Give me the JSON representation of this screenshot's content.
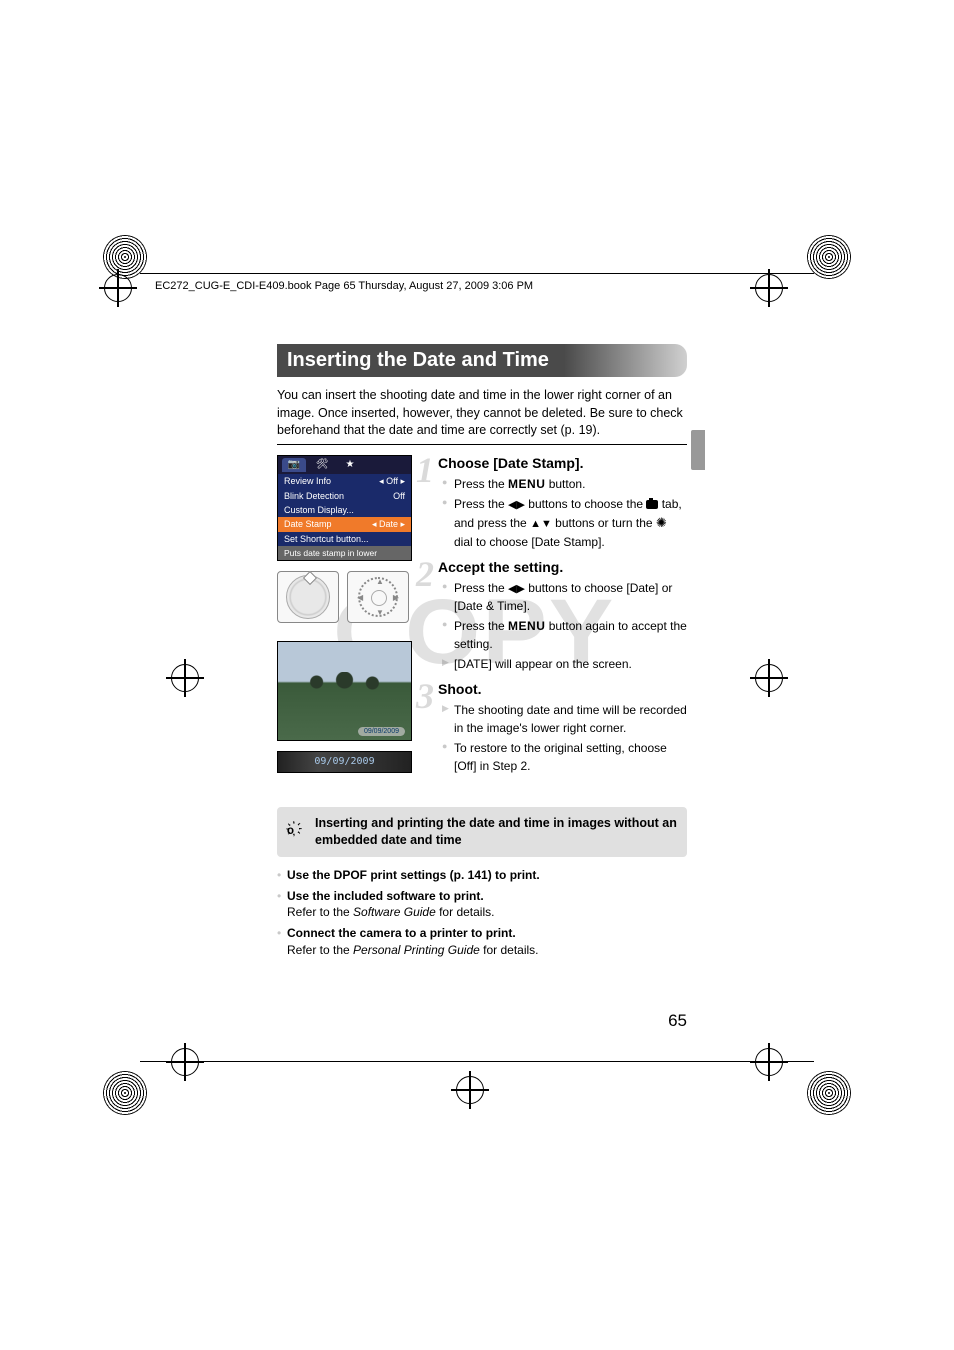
{
  "doc": {
    "header_text": "EC272_CUG-E_CDI-E409.book  Page 65  Thursday, August 27, 2009  3:06 PM",
    "page_number": "65",
    "watermark": "COPY"
  },
  "title": "Inserting the Date and Time",
  "intro": "You can insert the shooting date and time in the lower right corner of an image. Once inserted, however, they cannot be deleted. Be sure to check beforehand that the date and time are correctly set (p. 19).",
  "menu_screen": {
    "tabs": [
      "📷",
      "🛠",
      "★"
    ],
    "rows": [
      {
        "label": "Review Info",
        "value": "Off",
        "sel": false,
        "arrows": true
      },
      {
        "label": "Blink Detection",
        "value": "Off",
        "sel": false,
        "arrows": false
      },
      {
        "label": "Custom Display...",
        "value": "",
        "sel": false,
        "arrows": false
      },
      {
        "label": "Date Stamp",
        "value": "Date",
        "sel": true,
        "arrows": true
      },
      {
        "label": "Set Shortcut button...",
        "value": "",
        "sel": false,
        "arrows": false
      }
    ],
    "hint": "Puts date stamp in lower"
  },
  "photo": {
    "tag_date": "09/09/2009"
  },
  "date_strip": "09/09/2009",
  "steps": [
    {
      "num": "1",
      "title": "Choose [Date Stamp].",
      "items": [
        {
          "kind": "dot",
          "html": "Press the <span class=\"menu-word\">MENU</span> button."
        },
        {
          "kind": "dot",
          "html": "Press the <span class=\"btn-lr\">◀▶</span> buttons to choose the <span class=\"cam-icon\" data-name=\"camera-icon\" data-interactable=\"false\"></span> tab, and press the <span class=\"btn-ud\">▲▼</span> buttons or turn the <span class=\"dial-icon\">✺</span> dial to choose [Date Stamp]."
        }
      ]
    },
    {
      "num": "2",
      "title": "Accept the setting.",
      "items": [
        {
          "kind": "dot",
          "html": "Press the <span class=\"btn-lr\">◀▶</span> buttons to choose [Date] or [Date & Time]."
        },
        {
          "kind": "dot",
          "html": "Press the <span class=\"menu-word\">MENU</span> button again to accept the setting."
        },
        {
          "kind": "arrow",
          "html": "[DATE] will appear on the screen."
        }
      ]
    },
    {
      "num": "3",
      "title": "Shoot.",
      "items": [
        {
          "kind": "arrow",
          "html": "The shooting date and time will be recorded in the image's lower right corner."
        },
        {
          "kind": "dot",
          "html": "To restore to the original setting, choose [Off] in Step 2."
        }
      ]
    }
  ],
  "tip": {
    "heading": "Inserting and printing the date and time in images without an embedded date and time",
    "items": [
      {
        "bold": "Use the DPOF print settings (p. 141) to print.",
        "sub": ""
      },
      {
        "bold": "Use the included software to print.",
        "sub": "Refer to the <em>Software Guide</em> for details."
      },
      {
        "bold": "Connect the camera to a printer to print.",
        "sub": "Refer to the <em>Personal Printing Guide</em> for details."
      }
    ]
  },
  "style": {
    "title_bg_dark": "#4a4a4a",
    "title_bg_light": "#d0d0d0",
    "menu_bg": "#1a2a6a",
    "menu_sel_bg": "#f07a2a",
    "tip_bg": "#e0e0e0",
    "bullet_color": "rgba(120,120,120,.4)",
    "watermark_color": "rgba(170,170,170,.35)"
  }
}
